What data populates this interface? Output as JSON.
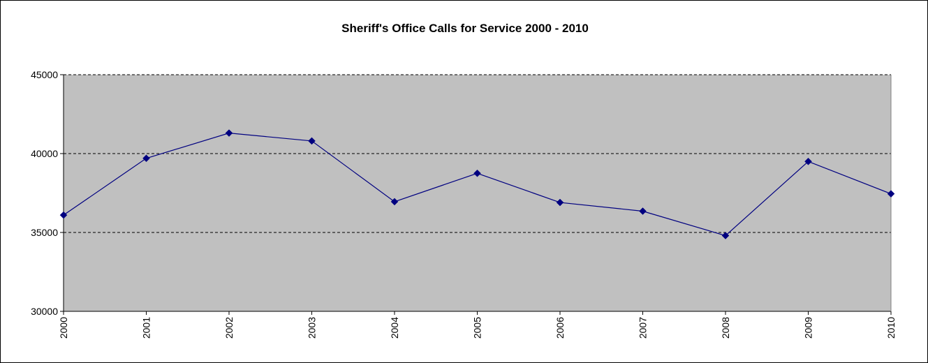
{
  "chart_data": {
    "type": "line",
    "title": "Sheriff's Office Calls for Service 2000 - 2010",
    "xlabel": "",
    "ylabel": "",
    "categories": [
      "2000",
      "2001",
      "2002",
      "2003",
      "2004",
      "2005",
      "2006",
      "2007",
      "2008",
      "2009",
      "2010"
    ],
    "series": [
      {
        "values": [
          36100,
          39700,
          41300,
          40800,
          36950,
          38750,
          36900,
          36350,
          34800,
          39500,
          37450
        ]
      }
    ],
    "ylim": [
      30000,
      45000
    ],
    "yticks": [
      "30000",
      "35000",
      "40000",
      "45000"
    ],
    "grid": "horizontal dashed",
    "legend": "none",
    "colors": {
      "plot_background": "#c0c0c0",
      "series": "#000080",
      "gridline": "#000000"
    },
    "marker": "diamond"
  }
}
